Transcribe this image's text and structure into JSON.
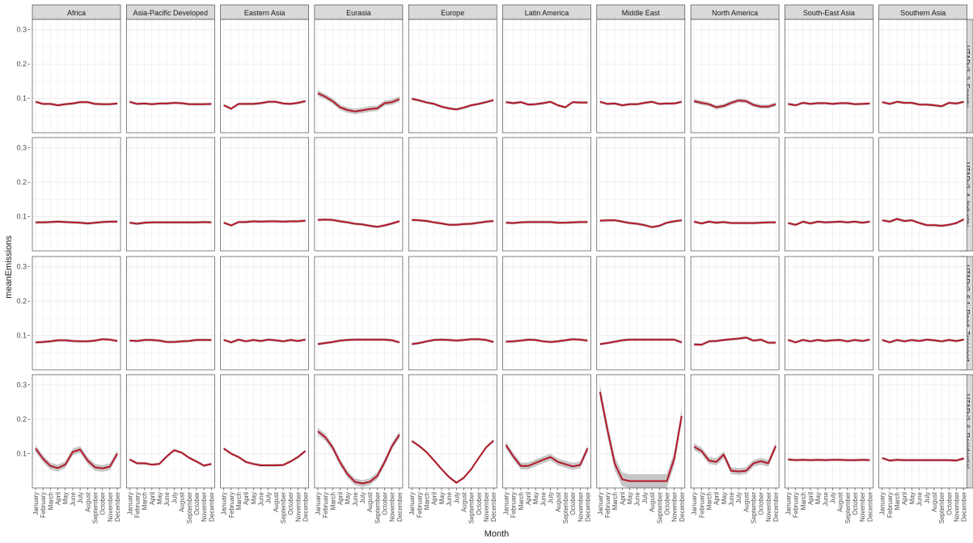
{
  "chart_data": {
    "type": "line",
    "xlabel": "Month",
    "ylabel": "meanEmissions",
    "ylim": [
      0.0,
      0.33
    ],
    "yticks": [
      0.1,
      0.2,
      0.3
    ],
    "grid": true,
    "colors": {
      "line": "#b2182b",
      "ribbon": "#bdbdbd",
      "strip": "#d9d9d9",
      "grid": "#ebebeb"
    },
    "months": [
      "January",
      "February",
      "March",
      "April",
      "May",
      "June",
      "July",
      "August",
      "September",
      "October",
      "November",
      "December"
    ],
    "regions": [
      "Africa",
      "Asia-Pacific Developed",
      "Eastern Asia",
      "Eurasia",
      "Europe",
      "Latin America",
      "Middle East",
      "North America",
      "South-East Asia",
      "Southern Asia"
    ],
    "sectors": [
      "HTAPv3_3_Energy",
      "HTAPv3_4_Industry",
      "HTAPv3_5.1_Road_Transport",
      "HTAPv3_6_Residential"
    ],
    "series": [
      [
        {
          "values": [
            0.09,
            0.084,
            0.084,
            0.08,
            0.083,
            0.085,
            0.089,
            0.089,
            0.084,
            0.083,
            0.083,
            0.085
          ]
        },
        {
          "values": [
            0.09,
            0.084,
            0.085,
            0.083,
            0.085,
            0.085,
            0.087,
            0.086,
            0.083,
            0.083,
            0.083,
            0.084
          ]
        },
        {
          "values": [
            0.08,
            0.07,
            0.084,
            0.084,
            0.084,
            0.086,
            0.09,
            0.09,
            0.085,
            0.084,
            0.087,
            0.092
          ]
        },
        {
          "values": [
            0.115,
            0.105,
            0.092,
            0.074,
            0.066,
            0.062,
            0.065,
            0.069,
            0.071,
            0.086,
            0.089,
            0.098
          ],
          "band": 0.008
        },
        {
          "values": [
            0.099,
            0.094,
            0.088,
            0.084,
            0.076,
            0.071,
            0.068,
            0.073,
            0.08,
            0.084,
            0.089,
            0.095
          ]
        },
        {
          "values": [
            0.089,
            0.086,
            0.089,
            0.082,
            0.083,
            0.086,
            0.09,
            0.08,
            0.074,
            0.089,
            0.088,
            0.088
          ]
        },
        {
          "values": [
            0.09,
            0.084,
            0.085,
            0.08,
            0.083,
            0.083,
            0.087,
            0.09,
            0.084,
            0.085,
            0.085,
            0.09
          ]
        },
        {
          "values": [
            0.092,
            0.087,
            0.083,
            0.074,
            0.078,
            0.087,
            0.094,
            0.092,
            0.081,
            0.076,
            0.076,
            0.083
          ],
          "band": 0.006
        },
        {
          "values": [
            0.084,
            0.08,
            0.087,
            0.084,
            0.086,
            0.086,
            0.084,
            0.086,
            0.086,
            0.083,
            0.084,
            0.085
          ]
        },
        {
          "values": [
            0.089,
            0.084,
            0.09,
            0.087,
            0.087,
            0.082,
            0.082,
            0.08,
            0.077,
            0.087,
            0.085,
            0.09
          ]
        }
      ],
      [
        {
          "values": [
            0.083,
            0.083,
            0.084,
            0.085,
            0.084,
            0.083,
            0.082,
            0.08,
            0.082,
            0.084,
            0.085,
            0.085
          ]
        },
        {
          "values": [
            0.082,
            0.079,
            0.082,
            0.083,
            0.083,
            0.083,
            0.083,
            0.083,
            0.083,
            0.083,
            0.084,
            0.083
          ]
        },
        {
          "values": [
            0.082,
            0.074,
            0.084,
            0.084,
            0.086,
            0.085,
            0.086,
            0.086,
            0.085,
            0.086,
            0.086,
            0.088
          ]
        },
        {
          "values": [
            0.09,
            0.091,
            0.09,
            0.086,
            0.083,
            0.079,
            0.077,
            0.073,
            0.07,
            0.074,
            0.08,
            0.086
          ]
        },
        {
          "values": [
            0.09,
            0.089,
            0.087,
            0.083,
            0.08,
            0.076,
            0.076,
            0.078,
            0.079,
            0.082,
            0.085,
            0.087
          ]
        },
        {
          "values": [
            0.082,
            0.081,
            0.083,
            0.084,
            0.084,
            0.084,
            0.084,
            0.082,
            0.082,
            0.083,
            0.084,
            0.084
          ]
        },
        {
          "values": [
            0.088,
            0.089,
            0.089,
            0.085,
            0.081,
            0.079,
            0.075,
            0.069,
            0.073,
            0.082,
            0.086,
            0.089
          ]
        },
        {
          "values": [
            0.085,
            0.08,
            0.085,
            0.082,
            0.084,
            0.081,
            0.081,
            0.081,
            0.081,
            0.082,
            0.083,
            0.083
          ]
        },
        {
          "values": [
            0.081,
            0.076,
            0.085,
            0.08,
            0.085,
            0.083,
            0.084,
            0.085,
            0.083,
            0.085,
            0.082,
            0.085
          ]
        },
        {
          "values": [
            0.089,
            0.085,
            0.093,
            0.087,
            0.089,
            0.081,
            0.075,
            0.075,
            0.073,
            0.076,
            0.081,
            0.092
          ]
        }
      ],
      [
        {
          "values": [
            0.08,
            0.081,
            0.083,
            0.086,
            0.086,
            0.084,
            0.083,
            0.083,
            0.085,
            0.089,
            0.088,
            0.084
          ]
        },
        {
          "values": [
            0.085,
            0.084,
            0.087,
            0.087,
            0.085,
            0.081,
            0.081,
            0.083,
            0.084,
            0.087,
            0.087,
            0.087
          ]
        },
        {
          "values": [
            0.087,
            0.08,
            0.088,
            0.083,
            0.087,
            0.084,
            0.088,
            0.086,
            0.083,
            0.087,
            0.084,
            0.088
          ]
        },
        {
          "values": [
            0.075,
            0.078,
            0.081,
            0.085,
            0.087,
            0.088,
            0.088,
            0.088,
            0.088,
            0.088,
            0.086,
            0.08
          ]
        },
        {
          "values": [
            0.075,
            0.078,
            0.083,
            0.087,
            0.088,
            0.087,
            0.085,
            0.087,
            0.089,
            0.089,
            0.087,
            0.081
          ]
        },
        {
          "values": [
            0.082,
            0.083,
            0.085,
            0.088,
            0.087,
            0.083,
            0.081,
            0.083,
            0.086,
            0.089,
            0.088,
            0.085
          ]
        },
        {
          "values": [
            0.075,
            0.078,
            0.082,
            0.086,
            0.088,
            0.088,
            0.088,
            0.088,
            0.088,
            0.088,
            0.088,
            0.08
          ]
        },
        {
          "values": [
            0.074,
            0.073,
            0.083,
            0.084,
            0.087,
            0.089,
            0.091,
            0.094,
            0.085,
            0.088,
            0.079,
            0.079
          ]
        },
        {
          "values": [
            0.087,
            0.08,
            0.087,
            0.083,
            0.087,
            0.084,
            0.086,
            0.087,
            0.083,
            0.087,
            0.084,
            0.088
          ]
        },
        {
          "values": [
            0.087,
            0.08,
            0.087,
            0.083,
            0.087,
            0.084,
            0.088,
            0.086,
            0.083,
            0.087,
            0.084,
            0.088
          ]
        }
      ],
      [
        {
          "values": [
            0.115,
            0.085,
            0.064,
            0.058,
            0.068,
            0.105,
            0.112,
            0.08,
            0.06,
            0.057,
            0.062,
            0.1
          ],
          "band": 0.01
        },
        {
          "values": [
            0.083,
            0.072,
            0.072,
            0.068,
            0.07,
            0.092,
            0.11,
            0.103,
            0.088,
            0.077,
            0.065,
            0.07
          ]
        },
        {
          "values": [
            0.115,
            0.1,
            0.09,
            0.076,
            0.07,
            0.066,
            0.066,
            0.066,
            0.067,
            0.077,
            0.09,
            0.108
          ]
        },
        {
          "values": [
            0.165,
            0.148,
            0.118,
            0.075,
            0.04,
            0.018,
            0.013,
            0.018,
            0.035,
            0.075,
            0.122,
            0.155
          ],
          "band": 0.01
        },
        {
          "values": [
            0.137,
            0.122,
            0.104,
            0.08,
            0.055,
            0.032,
            0.015,
            0.03,
            0.055,
            0.087,
            0.118,
            0.138
          ]
        },
        {
          "values": [
            0.125,
            0.092,
            0.064,
            0.064,
            0.073,
            0.082,
            0.09,
            0.076,
            0.069,
            0.063,
            0.067,
            0.115
          ],
          "band": 0.01
        },
        {
          "values": [
            0.28,
            0.17,
            0.07,
            0.025,
            0.02,
            0.02,
            0.02,
            0.02,
            0.02,
            0.02,
            0.085,
            0.21
          ],
          "band": 0.02
        },
        {
          "values": [
            0.12,
            0.108,
            0.08,
            0.076,
            0.097,
            0.05,
            0.048,
            0.05,
            0.072,
            0.078,
            0.072,
            0.122
          ],
          "band": 0.01
        },
        {
          "values": [
            0.083,
            0.081,
            0.082,
            0.081,
            0.082,
            0.081,
            0.082,
            0.082,
            0.081,
            0.081,
            0.082,
            0.081
          ]
        },
        {
          "values": [
            0.087,
            0.08,
            0.082,
            0.081,
            0.081,
            0.081,
            0.081,
            0.081,
            0.081,
            0.081,
            0.08,
            0.086
          ]
        }
      ]
    ]
  }
}
